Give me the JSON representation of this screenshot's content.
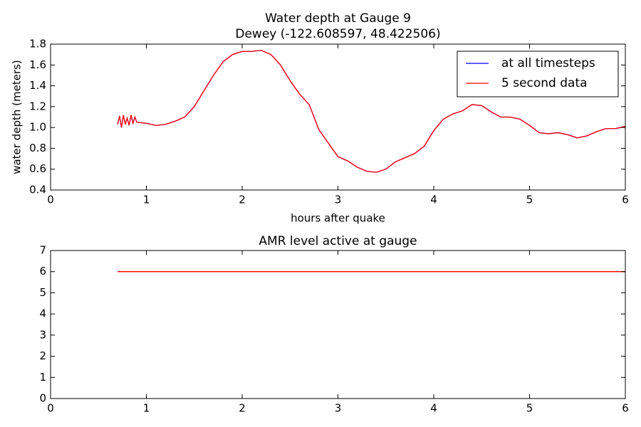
{
  "chart_data": [
    {
      "type": "line",
      "title": "Water depth at Gauge 9",
      "subtitle": "Dewey  (-122.608597, 48.422506)",
      "x_label": "hours after quake",
      "y_label": "water depth (meters)",
      "x": [
        0.7,
        0.72,
        0.74,
        0.76,
        0.78,
        0.8,
        0.82,
        0.84,
        0.86,
        0.88,
        0.9,
        1.0,
        1.1,
        1.2,
        1.3,
        1.4,
        1.5,
        1.6,
        1.7,
        1.8,
        1.9,
        2.0,
        2.1,
        2.2,
        2.3,
        2.4,
        2.5,
        2.6,
        2.7,
        2.8,
        2.9,
        3.0,
        3.1,
        3.2,
        3.3,
        3.4,
        3.5,
        3.6,
        3.7,
        3.8,
        3.9,
        4.0,
        4.1,
        4.2,
        4.3,
        4.4,
        4.5,
        4.6,
        4.7,
        4.8,
        4.9,
        5.0,
        5.1,
        5.2,
        5.3,
        5.4,
        5.5,
        5.6,
        5.7,
        5.8,
        5.9,
        6.0
      ],
      "series": [
        {
          "name": "at all timesteps",
          "color": "#0000ff",
          "values": [
            1.03,
            1.11,
            1.0,
            1.12,
            1.03,
            1.09,
            1.02,
            1.12,
            1.04,
            1.1,
            1.05,
            1.04,
            1.02,
            1.03,
            1.06,
            1.1,
            1.2,
            1.35,
            1.5,
            1.63,
            1.7,
            1.73,
            1.73,
            1.74,
            1.7,
            1.6,
            1.45,
            1.32,
            1.22,
            0.98,
            0.85,
            0.72,
            0.68,
            0.62,
            0.58,
            0.57,
            0.6,
            0.67,
            0.71,
            0.75,
            0.82,
            0.97,
            1.08,
            1.13,
            1.16,
            1.22,
            1.21,
            1.15,
            1.1,
            1.1,
            1.08,
            1.02,
            0.95,
            0.94,
            0.95,
            0.93,
            0.9,
            0.92,
            0.96,
            0.99,
            0.99,
            1.01
          ]
        },
        {
          "name": "5 second data",
          "color": "#ff0000",
          "values": [
            1.03,
            1.11,
            1.0,
            1.12,
            1.03,
            1.09,
            1.02,
            1.12,
            1.04,
            1.1,
            1.05,
            1.04,
            1.02,
            1.03,
            1.06,
            1.1,
            1.2,
            1.35,
            1.5,
            1.63,
            1.7,
            1.73,
            1.73,
            1.74,
            1.7,
            1.6,
            1.45,
            1.32,
            1.22,
            0.98,
            0.85,
            0.72,
            0.68,
            0.62,
            0.58,
            0.57,
            0.6,
            0.67,
            0.71,
            0.75,
            0.82,
            0.97,
            1.08,
            1.13,
            1.16,
            1.22,
            1.21,
            1.15,
            1.1,
            1.1,
            1.08,
            1.02,
            0.95,
            0.94,
            0.95,
            0.93,
            0.9,
            0.92,
            0.96,
            0.99,
            0.99,
            1.01
          ]
        }
      ],
      "xlim": [
        0,
        6
      ],
      "xticks": [
        0,
        1,
        2,
        3,
        4,
        5,
        6
      ],
      "ylim": [
        0.4,
        1.8
      ],
      "yticks": [
        0.4,
        0.6,
        0.8,
        {
          "value": 1,
          "label": "1.0"
        },
        1.2,
        1.4,
        1.6,
        1.8
      ],
      "legend": "upper right"
    },
    {
      "type": "line",
      "title": "AMR level active at gauge",
      "x": [
        0.7,
        6
      ],
      "series": [
        {
          "color": "#ff0000",
          "values": [
            6,
            6
          ]
        }
      ],
      "xlim": [
        0,
        6
      ],
      "xticks": [
        0,
        1,
        2,
        3,
        4,
        5,
        6
      ],
      "ylim": [
        0,
        7
      ],
      "yticks": [
        0,
        1,
        2,
        3,
        4,
        5,
        6,
        7
      ]
    }
  ]
}
